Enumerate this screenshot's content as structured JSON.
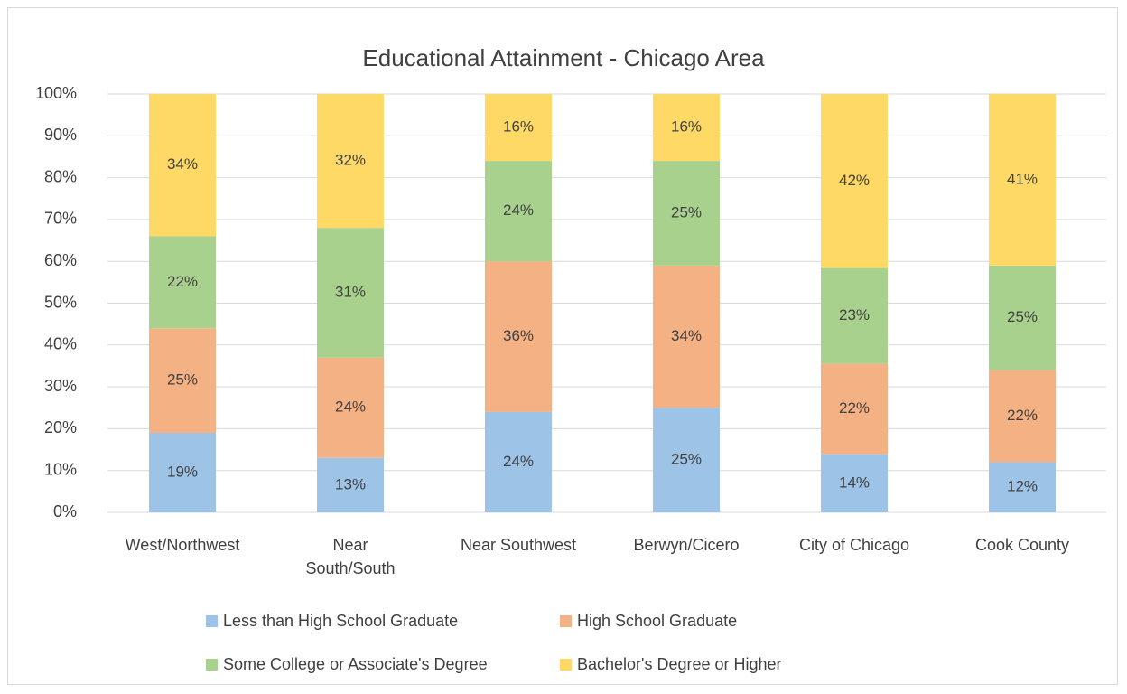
{
  "chart_data": {
    "type": "stacked_bar",
    "title": "Educational Attainment - Chicago Area",
    "categories": [
      "West/Northwest",
      "Near South/South",
      "Near Southwest",
      "Berwyn/Cicero",
      "City of Chicago",
      "Cook County"
    ],
    "series": [
      {
        "name": "Less than High School Graduate",
        "color": "#9dc3e6",
        "values": [
          19,
          13,
          24,
          25,
          13.9,
          12
        ],
        "value_labels": [
          "19%",
          "13%",
          "24%",
          "25%",
          "14%",
          "12%"
        ]
      },
      {
        "name": "High School Graduate",
        "color": "#f4b183",
        "values": [
          25,
          24,
          36,
          34,
          21.6,
          22
        ],
        "value_labels": [
          "25%",
          "24%",
          "36%",
          "34%",
          "22%",
          "22%"
        ]
      },
      {
        "name": "Some College or Associate's Degree",
        "color": "#a9d18e",
        "values": [
          22,
          31,
          24,
          25,
          22.9,
          25
        ],
        "value_labels": [
          "22%",
          "31%",
          "24%",
          "25%",
          "23%",
          "25%"
        ]
      },
      {
        "name": "Bachelor's Degree or Higher",
        "color": "#ffd966",
        "values": [
          34,
          32,
          16,
          16,
          41.6,
          41
        ],
        "value_labels": [
          "34%",
          "32%",
          "16%",
          "16%",
          "42%",
          "41%"
        ]
      }
    ],
    "ylim": [
      0,
      100
    ],
    "yticks": [
      {
        "value": 0,
        "label": "0%"
      },
      {
        "value": 10,
        "label": "10%"
      },
      {
        "value": 20,
        "label": "20%"
      },
      {
        "value": 30,
        "label": "30%"
      },
      {
        "value": 40,
        "label": "40%"
      },
      {
        "value": 50,
        "label": "50%"
      },
      {
        "value": 60,
        "label": "60%"
      },
      {
        "value": 70,
        "label": "70%"
      },
      {
        "value": 80,
        "label": "80%"
      },
      {
        "value": 90,
        "label": "90%"
      },
      {
        "value": 100,
        "label": "100%"
      }
    ],
    "grid": true,
    "legend": "bottom"
  }
}
